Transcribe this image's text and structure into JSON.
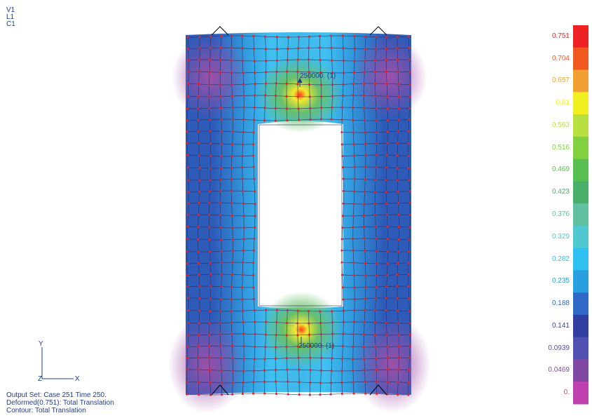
{
  "view_tags": [
    "V1",
    "L1",
    "C1"
  ],
  "output_info": {
    "line1": "Output Set: Case 251 Time 250.",
    "line2": "Deformed(0.751): Total Translation",
    "line3": "Contour: Total Translation"
  },
  "axes": {
    "y": "Y",
    "x": "X",
    "z": "Z"
  },
  "loads": {
    "top": "250000. (1)",
    "bottom": "250000. (1)"
  },
  "legend": {
    "values": [
      "0.751",
      "0.704",
      "0.657",
      "0.61",
      "0.563",
      "0.516",
      "0.469",
      "0.423",
      "0.376",
      "0.329",
      "0.282",
      "0.235",
      "0.188",
      "0.141",
      "0.0939",
      "0.0469",
      "0."
    ],
    "colors": [
      "#ee2222",
      "#f05820",
      "#f0a030",
      "#f0f020",
      "#b8e040",
      "#80d040",
      "#58c050",
      "#48b068",
      "#60c0a0",
      "#50c8d0",
      "#30c0f0",
      "#28a0e0",
      "#3068c8",
      "#3040a0",
      "#5050b0",
      "#8048a0",
      "#c040b0"
    ]
  },
  "colors": {
    "outer": "#2e5ab8",
    "corner": "#a050a8",
    "band": "#38b0e8",
    "hot_green": "#6ac06a",
    "hot_yellow": "#f4e830",
    "node": "#e02828",
    "grid": "#23306e",
    "annotation": "#1f3d8c"
  }
}
